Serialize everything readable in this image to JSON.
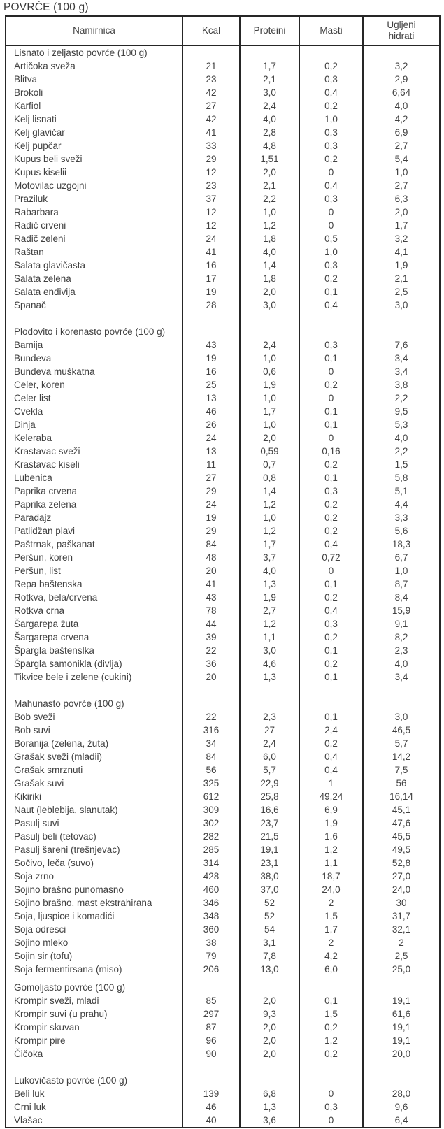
{
  "page_title": "POVRĆE (100 g)",
  "table": {
    "columns": [
      "Namirnica",
      "Kcal",
      "Proteini",
      "Masti",
      "Ugljeni hidrati"
    ],
    "sections": [
      {
        "label": "Lisnato i zeljasto povrće (100 g)",
        "rows": [
          [
            "Artičoka sveža",
            "21",
            "1,7",
            "0,2",
            "3,2"
          ],
          [
            "Blitva",
            "23",
            "2,1",
            "0,3",
            "2,9"
          ],
          [
            "Brokoli",
            "42",
            "3,0",
            "0,4",
            "6,64"
          ],
          [
            "Karfiol",
            "27",
            "2,4",
            "0,2",
            "4,0"
          ],
          [
            "Kelj lisnati",
            "42",
            "4,0",
            "1,0",
            "4,2"
          ],
          [
            "Kelj glavičar",
            "41",
            "2,8",
            "0,3",
            "6,9"
          ],
          [
            "Kelj pupčar",
            "33",
            "4,8",
            "0,3",
            "2,7"
          ],
          [
            "Kupus beli sveži",
            "29",
            "1,51",
            "0,2",
            "5,4"
          ],
          [
            "Kupus kiselii",
            "12",
            "2,0",
            "0",
            "1,0"
          ],
          [
            "Motovilac uzgojni",
            "23",
            "2,1",
            "0,4",
            "2,7"
          ],
          [
            "Praziluk",
            "37",
            "2,2",
            "0,3",
            "6,3"
          ],
          [
            "Rabarbara",
            "12",
            "1,0",
            "0",
            "2,0"
          ],
          [
            "Radič crveni",
            "12",
            "1,2",
            "0",
            "1,7"
          ],
          [
            "Radič zeleni",
            "24",
            "1,8",
            "0,5",
            "3,2"
          ],
          [
            "Raštan",
            "41",
            "4,0",
            "1,0",
            "4,1"
          ],
          [
            "Salata glavičasta",
            "16",
            "1,4",
            "0,3",
            "1,9"
          ],
          [
            "Salata zelena",
            "17",
            "1,8",
            "0,2",
            "2,1"
          ],
          [
            "Salata endivija",
            "19",
            "2,0",
            "0,1",
            "2,5"
          ],
          [
            "Spanač",
            "28",
            "3,0",
            "0,4",
            "3,0"
          ]
        ]
      },
      {
        "label": "Plodovito i korenasto povrće (100 g)",
        "rows": [
          [
            "Bamija",
            "43",
            "2,4",
            "0,3",
            "7,6"
          ],
          [
            "Bundeva",
            "19",
            "1,0",
            "0,1",
            "3,4"
          ],
          [
            "Bundeva muškatna",
            "16",
            "0,6",
            "0",
            "3,4"
          ],
          [
            "Celer, koren",
            "25",
            "1,9",
            "0,2",
            "3,8"
          ],
          [
            "Celer list",
            "13",
            "1,0",
            "0",
            "2,2"
          ],
          [
            "Cvekla",
            "46",
            "1,7",
            "0,1",
            "9,5"
          ],
          [
            "Dinja",
            "26",
            "1,0",
            "0,1",
            "5,3"
          ],
          [
            "Keleraba",
            "24",
            "2,0",
            "0",
            "4,0"
          ],
          [
            "Krastavac sveži",
            "13",
            "0,59",
            "0,16",
            "2,2"
          ],
          [
            "Krastavac kiseli",
            "11",
            "0,7",
            "0,2",
            "1,5"
          ],
          [
            "Lubenica",
            "27",
            "0,8",
            "0,1",
            "5,8"
          ],
          [
            "Paprika crvena",
            "29",
            "1,4",
            "0,3",
            "5,1"
          ],
          [
            "Paprika zelena",
            "24",
            "1,2",
            "0,2",
            "4,4"
          ],
          [
            "Paradajz",
            "19",
            "1,0",
            "0,2",
            "3,3"
          ],
          [
            "Patlidžan plavi",
            "29",
            "1,2",
            "0,2",
            "5,6"
          ],
          [
            "Paštrnak, paškanat",
            "84",
            "1,7",
            "0,4",
            "18,3"
          ],
          [
            "Peršun, koren",
            "48",
            "3,7",
            "0,72",
            "6,7"
          ],
          [
            "Peršun, list",
            "20",
            "4,0",
            "0",
            "1,0"
          ],
          [
            "Repa baštenska",
            "41",
            "1,3",
            "0,1",
            "8,7"
          ],
          [
            "Rotkva, bela/crvena",
            "43",
            "1,9",
            "0,2",
            "8,4"
          ],
          [
            "Rotkva crna",
            "78",
            "2,7",
            "0,4",
            "15,9"
          ],
          [
            "Šargarepa žuta",
            "44",
            "1,2",
            "0,3",
            "9,1"
          ],
          [
            "Šargarepa crvena",
            "39",
            "1,1",
            "0,2",
            "8,2"
          ],
          [
            "Špargla baštenslka",
            "22",
            "3,0",
            "0,1",
            "2,3"
          ],
          [
            "Špargla samonikla (divlja)",
            "36",
            "4,6",
            "0,2",
            "4,0"
          ],
          [
            "Tikvice bele i zelene (cukini)",
            "20",
            "1,3",
            "0,1",
            "3,4"
          ]
        ]
      },
      {
        "label": "Mahunasto povrće (100 g)",
        "rows": [
          [
            "Bob sveži",
            "22",
            "2,3",
            "0,1",
            "3,0"
          ],
          [
            "Bob suvi",
            "316",
            "27",
            "2,4",
            "46,5"
          ],
          [
            "Boranija (zelena, žuta)",
            "34",
            "2,4",
            "0,2",
            "5,7"
          ],
          [
            "Grašak sveži (mladii)",
            "84",
            "6,0",
            "0,4",
            "14,2"
          ],
          [
            "Grašak smrznuti",
            "56",
            "5,7",
            "0,4",
            "7,5"
          ],
          [
            "Grašak suvi",
            "325",
            "22,9",
            "1",
            "56"
          ],
          [
            "Kikiriki",
            "612",
            "25,8",
            "49,24",
            "16,14"
          ],
          [
            "Naut (leblebija, slanutak)",
            "309",
            "16,6",
            "6,9",
            "45,1"
          ],
          [
            "Pasulj suvi",
            "302",
            "23,7",
            "1,9",
            "47,6"
          ],
          [
            "Pasulj beli (tetovac)",
            "282",
            "21,5",
            "1,6",
            "45,5"
          ],
          [
            "Pasulj šareni (trešnjevac)",
            "285",
            "19,1",
            "1,2",
            "49,5"
          ],
          [
            "Sočivo, leča (suvo)",
            "314",
            "23,1",
            "1,1",
            "52,8"
          ],
          [
            "Soja zrno",
            "428",
            "38,0",
            "18,7",
            "27,0"
          ],
          [
            "Sojino brašno punomasno",
            "460",
            "37,0",
            "24,0",
            "24,0"
          ],
          [
            "Sojino brašno, mast ekstrahirana",
            "346",
            "52",
            "2",
            "30"
          ],
          [
            "Soja, ljuspice i komadići",
            "348",
            "52",
            "1,5",
            "31,7"
          ],
          [
            "Soja odresci",
            "360",
            "54",
            "1,7",
            "32,1"
          ],
          [
            "Sojino mleko",
            "38",
            "3,1",
            "2",
            "2"
          ],
          [
            "Sojin sir (tofu)",
            "79",
            "7,8",
            "4,2",
            "2,5"
          ],
          [
            "Soja fermentirsana (miso)",
            "206",
            "13,0",
            "6,0",
            "25,0"
          ]
        ]
      },
      {
        "label": "Gomoljasto povrće (100 g)",
        "rows": [
          [
            "Krompir sveži, mladi",
            "85",
            "2,0",
            "0,1",
            "19,1"
          ],
          [
            "Krompir suvi (u prahu)",
            "297",
            "9,3",
            "1,5",
            "61,6"
          ],
          [
            "Krompir skuvan",
            "87",
            "2,0",
            "0,2",
            "19,1"
          ],
          [
            "Krompir pire",
            "96",
            "2,0",
            "1,2",
            "19,1"
          ],
          [
            "Čičoka",
            "90",
            "2,0",
            "0,2",
            "20,0"
          ]
        ]
      },
      {
        "label": "Lukovičasto povrće (100 g)",
        "rows": [
          [
            "Beli luk",
            "139",
            "6,8",
            "0",
            "28,0"
          ],
          [
            "Crni luk",
            "46",
            "1,3",
            "0,3",
            "9,6"
          ],
          [
            "Vlašac",
            "40",
            "3,6",
            "0",
            "6,4"
          ]
        ]
      }
    ]
  },
  "colors": {
    "text": "#414141",
    "border": "#262626",
    "background": "#ffffff"
  }
}
